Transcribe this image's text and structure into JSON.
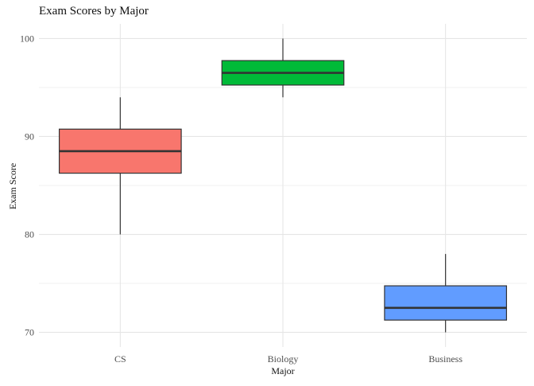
{
  "chart_data": {
    "type": "box",
    "title": "Exam Scores by Major",
    "xlabel": "Major",
    "ylabel": "Exam Score",
    "ylim": [
      68.5,
      101.5
    ],
    "y_ticks": [
      70,
      80,
      90,
      100
    ],
    "grid": true,
    "legend": "none",
    "categories": [
      "CS",
      "Biology",
      "Business"
    ],
    "boxes": [
      {
        "category": "CS",
        "min": 80,
        "q1": 86.25,
        "median": 88.5,
        "q3": 90.75,
        "max": 94,
        "color": "#F8766D"
      },
      {
        "category": "Biology",
        "min": 94,
        "q1": 95.25,
        "median": 96.5,
        "q3": 97.75,
        "max": 100,
        "color": "#00BA38"
      },
      {
        "category": "Business",
        "min": 70,
        "q1": 71.25,
        "median": 72.5,
        "q3": 74.75,
        "max": 78,
        "color": "#619CFF"
      }
    ]
  }
}
